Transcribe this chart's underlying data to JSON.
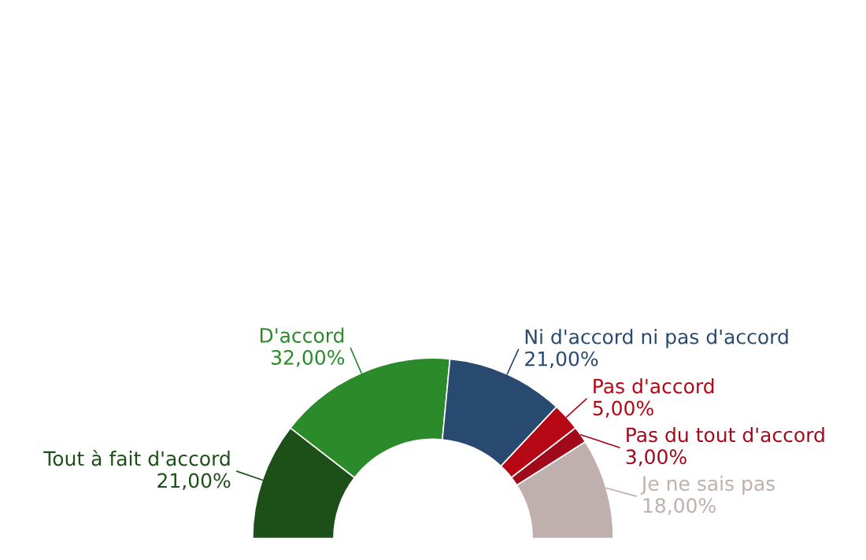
{
  "chart_data": {
    "type": "donut",
    "categories": [
      "Tout à fait d'accord",
      "D'accord",
      "Ni d'accord ni pas d'accord",
      "Pas d'accord",
      "Pas du tout d'accord",
      "Je ne sais pas"
    ],
    "values": [
      21,
      32,
      21,
      5,
      3,
      18
    ],
    "value_labels": [
      "21,00%",
      "32,00%",
      "21,00%",
      "5,00%",
      "3,00%",
      "18,00%"
    ],
    "colors": [
      "#1c5018",
      "#2b8a2a",
      "#284a70",
      "#b50714",
      "#a00a1a",
      "#bfb0ad"
    ]
  }
}
